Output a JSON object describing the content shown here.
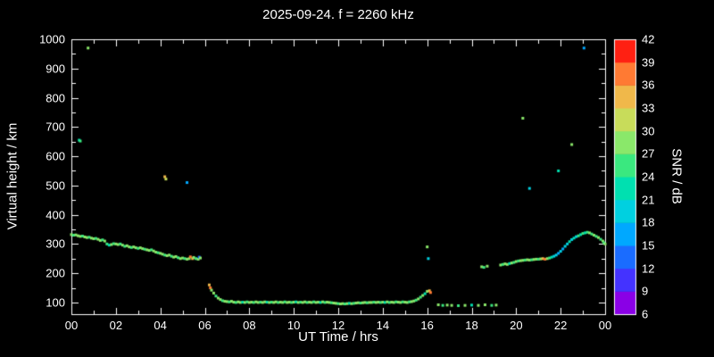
{
  "title": "2025-09-24. f = 2260 kHz",
  "axes": {
    "x_label": "UT Time / hrs",
    "y_label": "Virtual height / km",
    "cb_label": "SNR / dB",
    "x_ticks": [
      {
        "value": 0,
        "label": "00"
      },
      {
        "value": 2,
        "label": "02"
      },
      {
        "value": 4,
        "label": "04"
      },
      {
        "value": 6,
        "label": "06"
      },
      {
        "value": 8,
        "label": "08"
      },
      {
        "value": 10,
        "label": "10"
      },
      {
        "value": 12,
        "label": "12"
      },
      {
        "value": 14,
        "label": "14"
      },
      {
        "value": 16,
        "label": "16"
      },
      {
        "value": 18,
        "label": "18"
      },
      {
        "value": 20,
        "label": "20"
      },
      {
        "value": 22,
        "label": "22"
      },
      {
        "value": 24,
        "label": "00"
      }
    ],
    "y_ticks": [
      {
        "value": 100,
        "label": "100"
      },
      {
        "value": 200,
        "label": "200"
      },
      {
        "value": 300,
        "label": "300"
      },
      {
        "value": 400,
        "label": "400"
      },
      {
        "value": 500,
        "label": "500"
      },
      {
        "value": 600,
        "label": "600"
      },
      {
        "value": 700,
        "label": "700"
      },
      {
        "value": 800,
        "label": "800"
      },
      {
        "value": 900,
        "label": "900"
      },
      {
        "value": 1000,
        "label": "1000"
      }
    ]
  },
  "colors": {
    "background": "#000000",
    "foreground": "#ffffff"
  },
  "colorbar": {
    "levels": [
      6,
      9,
      12,
      15,
      18,
      21,
      24,
      27,
      30,
      33,
      36,
      39,
      42
    ],
    "colors": [
      "#8a00e6",
      "#4433ff",
      "#1a6cff",
      "#00a8ff",
      "#00d0e0",
      "#00e0b0",
      "#3ae87f",
      "#8ae86a",
      "#c8dc5a",
      "#f0b84a",
      "#ff7a33",
      "#ff2012"
    ]
  },
  "chart_data": {
    "type": "scatter",
    "title": "2025-09-24. f = 2260 kHz",
    "xlabel": "UT Time / hrs",
    "ylabel": "Virtual height / km",
    "clabel": "SNR / dB",
    "xlim": [
      0,
      24
    ],
    "ylim": [
      60,
      1000
    ],
    "clim": [
      6,
      42
    ],
    "point_format": [
      "ut_hour",
      "virtual_height_km",
      "snr_db"
    ],
    "points": [
      [
        0.0,
        332,
        27
      ],
      [
        0.1,
        330,
        24
      ],
      [
        0.2,
        331,
        27
      ],
      [
        0.3,
        328,
        27
      ],
      [
        0.35,
        655,
        21
      ],
      [
        0.4,
        652,
        24
      ],
      [
        0.4,
        326,
        27
      ],
      [
        0.5,
        327,
        24
      ],
      [
        0.6,
        324,
        27
      ],
      [
        0.7,
        322,
        27
      ],
      [
        0.75,
        970,
        27
      ],
      [
        0.8,
        323,
        24
      ],
      [
        0.9,
        320,
        27
      ],
      [
        1.0,
        318,
        27
      ],
      [
        1.1,
        319,
        24
      ],
      [
        1.2,
        316,
        27
      ],
      [
        1.3,
        312,
        27
      ],
      [
        1.4,
        314,
        24
      ],
      [
        1.5,
        310,
        27
      ],
      [
        1.6,
        300,
        24
      ],
      [
        1.7,
        296,
        21
      ],
      [
        1.8,
        298,
        27
      ],
      [
        1.9,
        301,
        24
      ],
      [
        2.0,
        300,
        27
      ],
      [
        2.1,
        298,
        27
      ],
      [
        2.2,
        300,
        24
      ],
      [
        2.3,
        296,
        27
      ],
      [
        2.4,
        292,
        24
      ],
      [
        2.5,
        294,
        27
      ],
      [
        2.6,
        290,
        27
      ],
      [
        2.7,
        288,
        24
      ],
      [
        2.8,
        290,
        27
      ],
      [
        2.9,
        287,
        27
      ],
      [
        3.0,
        285,
        24
      ],
      [
        3.1,
        287,
        27
      ],
      [
        3.2,
        284,
        27
      ],
      [
        3.3,
        282,
        24
      ],
      [
        3.4,
        280,
        27
      ],
      [
        3.5,
        278,
        27
      ],
      [
        3.6,
        280,
        24
      ],
      [
        3.7,
        276,
        27
      ],
      [
        3.8,
        272,
        27
      ],
      [
        3.9,
        270,
        24
      ],
      [
        4.0,
        268,
        27
      ],
      [
        4.1,
        265,
        27
      ],
      [
        4.2,
        530,
        33
      ],
      [
        4.25,
        522,
        30
      ],
      [
        4.2,
        262,
        24
      ],
      [
        4.3,
        260,
        27
      ],
      [
        4.4,
        262,
        27
      ],
      [
        4.5,
        258,
        24
      ],
      [
        4.6,
        255,
        27
      ],
      [
        4.7,
        257,
        27
      ],
      [
        4.8,
        253,
        24
      ],
      [
        4.9,
        250,
        27
      ],
      [
        5.0,
        252,
        27
      ],
      [
        5.1,
        250,
        24
      ],
      [
        5.2,
        510,
        15
      ],
      [
        5.2,
        248,
        27
      ],
      [
        5.3,
        250,
        27
      ],
      [
        5.35,
        256,
        36
      ],
      [
        5.45,
        250,
        33
      ],
      [
        5.5,
        254,
        27
      ],
      [
        5.6,
        250,
        24
      ],
      [
        5.7,
        248,
        27
      ],
      [
        5.75,
        255,
        12
      ],
      [
        5.8,
        252,
        27
      ],
      [
        6.2,
        160,
        33
      ],
      [
        6.25,
        150,
        36
      ],
      [
        6.3,
        142,
        27
      ],
      [
        6.4,
        132,
        27
      ],
      [
        6.5,
        122,
        24
      ],
      [
        6.6,
        115,
        27
      ],
      [
        6.7,
        110,
        27
      ],
      [
        6.8,
        106,
        24
      ],
      [
        6.9,
        104,
        27
      ],
      [
        7.0,
        103,
        27
      ],
      [
        7.1,
        102,
        24
      ],
      [
        7.2,
        104,
        27
      ],
      [
        7.3,
        101,
        27
      ],
      [
        7.4,
        100,
        24
      ],
      [
        7.5,
        102,
        27
      ],
      [
        7.6,
        100,
        27
      ],
      [
        7.7,
        101,
        21
      ],
      [
        7.8,
        100,
        27
      ],
      [
        7.9,
        102,
        24
      ],
      [
        8.0,
        100,
        27
      ],
      [
        8.1,
        101,
        27
      ],
      [
        8.2,
        100,
        24
      ],
      [
        8.3,
        102,
        27
      ],
      [
        8.4,
        100,
        27
      ],
      [
        8.5,
        101,
        24
      ],
      [
        8.6,
        100,
        27
      ],
      [
        8.7,
        102,
        27
      ],
      [
        8.8,
        101,
        21
      ],
      [
        8.9,
        100,
        27
      ],
      [
        9.0,
        101,
        24
      ],
      [
        9.1,
        100,
        27
      ],
      [
        9.2,
        102,
        27
      ],
      [
        9.3,
        100,
        24
      ],
      [
        9.4,
        101,
        27
      ],
      [
        9.5,
        100,
        27
      ],
      [
        9.6,
        102,
        24
      ],
      [
        9.7,
        100,
        27
      ],
      [
        9.8,
        101,
        27
      ],
      [
        9.9,
        100,
        24
      ],
      [
        10.0,
        101,
        27
      ],
      [
        10.1,
        102,
        21
      ],
      [
        10.2,
        100,
        27
      ],
      [
        10.3,
        101,
        24
      ],
      [
        10.4,
        100,
        27
      ],
      [
        10.5,
        102,
        27
      ],
      [
        10.6,
        100,
        24
      ],
      [
        10.7,
        101,
        27
      ],
      [
        10.8,
        100,
        27
      ],
      [
        10.9,
        102,
        24
      ],
      [
        11.0,
        100,
        27
      ],
      [
        11.1,
        101,
        27
      ],
      [
        11.2,
        100,
        21
      ],
      [
        11.3,
        102,
        27
      ],
      [
        11.4,
        100,
        24
      ],
      [
        11.5,
        101,
        27
      ],
      [
        11.6,
        100,
        27
      ],
      [
        11.7,
        99,
        24
      ],
      [
        11.8,
        98,
        27
      ],
      [
        11.9,
        97,
        27
      ],
      [
        12.0,
        96,
        24
      ],
      [
        12.1,
        95,
        27
      ],
      [
        12.2,
        96,
        27
      ],
      [
        12.3,
        95,
        24
      ],
      [
        12.4,
        96,
        27
      ],
      [
        12.5,
        97,
        21
      ],
      [
        12.6,
        96,
        27
      ],
      [
        12.7,
        97,
        24
      ],
      [
        12.8,
        98,
        27
      ],
      [
        12.9,
        99,
        27
      ],
      [
        13.0,
        98,
        24
      ],
      [
        13.1,
        99,
        27
      ],
      [
        13.2,
        100,
        27
      ],
      [
        13.3,
        99,
        24
      ],
      [
        13.4,
        100,
        27
      ],
      [
        13.5,
        100,
        27
      ],
      [
        13.6,
        101,
        24
      ],
      [
        13.7,
        100,
        27
      ],
      [
        13.8,
        101,
        27
      ],
      [
        13.9,
        100,
        24
      ],
      [
        14.0,
        101,
        27
      ],
      [
        14.1,
        100,
        21
      ],
      [
        14.2,
        102,
        27
      ],
      [
        14.3,
        100,
        24
      ],
      [
        14.4,
        101,
        27
      ],
      [
        14.5,
        100,
        27
      ],
      [
        14.6,
        102,
        24
      ],
      [
        14.7,
        101,
        27
      ],
      [
        14.8,
        100,
        27
      ],
      [
        14.9,
        102,
        24
      ],
      [
        15.0,
        101,
        27
      ],
      [
        15.1,
        100,
        27
      ],
      [
        15.2,
        102,
        24
      ],
      [
        15.3,
        103,
        27
      ],
      [
        15.4,
        105,
        27
      ],
      [
        15.5,
        108,
        24
      ],
      [
        15.6,
        112,
        27
      ],
      [
        15.7,
        118,
        24
      ],
      [
        15.8,
        124,
        27
      ],
      [
        15.9,
        130,
        21
      ],
      [
        16.0,
        138,
        27
      ],
      [
        16.0,
        290,
        27
      ],
      [
        16.05,
        250,
        18
      ],
      [
        16.1,
        140,
        33
      ],
      [
        16.15,
        134,
        36
      ],
      [
        16.5,
        92,
        27
      ],
      [
        16.7,
        90,
        24
      ],
      [
        16.9,
        91,
        27
      ],
      [
        17.1,
        90,
        27
      ],
      [
        17.4,
        89,
        24
      ],
      [
        17.7,
        90,
        27
      ],
      [
        18.0,
        91,
        21
      ],
      [
        18.3,
        90,
        27
      ],
      [
        18.6,
        92,
        27
      ],
      [
        18.9,
        90,
        24
      ],
      [
        19.1,
        91,
        27
      ],
      [
        18.45,
        222,
        27
      ],
      [
        18.55,
        220,
        24
      ],
      [
        18.7,
        224,
        27
      ],
      [
        19.3,
        228,
        27
      ],
      [
        19.4,
        230,
        24
      ],
      [
        19.5,
        232,
        27
      ],
      [
        19.6,
        230,
        27
      ],
      [
        19.7,
        233,
        21
      ],
      [
        19.8,
        235,
        27
      ],
      [
        19.9,
        237,
        24
      ],
      [
        20.0,
        240,
        27
      ],
      [
        20.1,
        242,
        24
      ],
      [
        20.2,
        243,
        27
      ],
      [
        20.3,
        730,
        27
      ],
      [
        20.3,
        244,
        27
      ],
      [
        20.4,
        245,
        24
      ],
      [
        20.5,
        246,
        27
      ],
      [
        20.6,
        490,
        18
      ],
      [
        20.6,
        245,
        27
      ],
      [
        20.7,
        246,
        24
      ],
      [
        20.8,
        247,
        27
      ],
      [
        20.9,
        248,
        27
      ],
      [
        21.0,
        248,
        24
      ],
      [
        21.1,
        249,
        27
      ],
      [
        21.2,
        250,
        33
      ],
      [
        21.3,
        248,
        36
      ],
      [
        21.4,
        250,
        27
      ],
      [
        21.5,
        252,
        24
      ],
      [
        21.6,
        255,
        21
      ],
      [
        21.7,
        258,
        18
      ],
      [
        21.8,
        262,
        18
      ],
      [
        21.9,
        550,
        21
      ],
      [
        21.9,
        268,
        15
      ],
      [
        22.0,
        275,
        18
      ],
      [
        22.1,
        283,
        15
      ],
      [
        22.2,
        292,
        18
      ],
      [
        22.3,
        300,
        18
      ],
      [
        22.4,
        308,
        21
      ],
      [
        22.5,
        640,
        27
      ],
      [
        22.5,
        315,
        18
      ],
      [
        22.6,
        320,
        21
      ],
      [
        22.7,
        325,
        18
      ],
      [
        22.8,
        328,
        24
      ],
      [
        22.9,
        332,
        21
      ],
      [
        23.0,
        336,
        24
      ],
      [
        23.05,
        970,
        15
      ],
      [
        23.1,
        338,
        21
      ],
      [
        23.2,
        340,
        24
      ],
      [
        23.3,
        338,
        27
      ],
      [
        23.4,
        334,
        24
      ],
      [
        23.5,
        330,
        27
      ],
      [
        23.6,
        326,
        24
      ],
      [
        23.7,
        322,
        27
      ],
      [
        23.8,
        316,
        24
      ],
      [
        23.9,
        310,
        27
      ],
      [
        23.95,
        304,
        24
      ],
      [
        24.0,
        300,
        27
      ]
    ]
  }
}
